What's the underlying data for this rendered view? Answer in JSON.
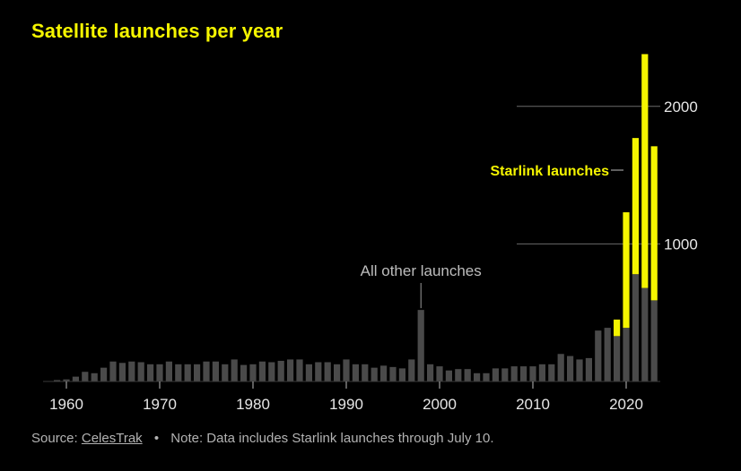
{
  "title": "Satellite launches per year",
  "source": {
    "prefix": "Source:",
    "link_text": "CelesTrak",
    "separator": "•",
    "note": "Note: Data includes Starlink launches through July 10."
  },
  "colors": {
    "background": "#000000",
    "title": "#f5f500",
    "starlink": "#f5f500",
    "other": "#4a4a4a",
    "axis_text": "#e6e6e6",
    "annotation": "#bdbdbd"
  },
  "chart_data": {
    "type": "bar",
    "stacked": true,
    "xlim": [
      1957,
      2023
    ],
    "ylim": [
      0,
      2400
    ],
    "x_ticks": [
      1960,
      1970,
      1980,
      1990,
      2000,
      2010,
      2020
    ],
    "y_ticks": [
      1000,
      2000
    ],
    "x_tick_labels": [
      "1960",
      "1970",
      "1980",
      "1990",
      "2000",
      "2010",
      "2020"
    ],
    "y_tick_labels": [
      "1000",
      "2000"
    ],
    "grid": false,
    "legend": "none",
    "annotations": [
      "All other launches",
      "Starlink launches"
    ],
    "x": [
      1959,
      1960,
      1961,
      1962,
      1963,
      1964,
      1965,
      1966,
      1967,
      1968,
      1969,
      1970,
      1971,
      1972,
      1973,
      1974,
      1975,
      1976,
      1977,
      1978,
      1979,
      1980,
      1981,
      1982,
      1983,
      1984,
      1985,
      1986,
      1987,
      1988,
      1989,
      1990,
      1991,
      1992,
      1993,
      1994,
      1995,
      1996,
      1997,
      1998,
      1999,
      2000,
      2001,
      2002,
      2003,
      2004,
      2005,
      2006,
      2007,
      2008,
      2009,
      2010,
      2011,
      2012,
      2013,
      2014,
      2015,
      2016,
      2017,
      2018,
      2019,
      2020,
      2021,
      2022,
      2023
    ],
    "series": [
      {
        "name": "All other launches",
        "values": [
          10,
          15,
          35,
          70,
          60,
          100,
          145,
          135,
          145,
          140,
          125,
          125,
          145,
          125,
          125,
          125,
          145,
          145,
          125,
          160,
          120,
          125,
          145,
          140,
          150,
          160,
          160,
          125,
          140,
          140,
          125,
          160,
          125,
          125,
          100,
          115,
          105,
          95,
          160,
          520,
          125,
          110,
          80,
          90,
          90,
          60,
          60,
          95,
          95,
          110,
          110,
          110,
          125,
          125,
          200,
          185,
          160,
          170,
          370,
          390,
          330,
          390,
          780,
          680,
          590
        ]
      },
      {
        "name": "Starlink launches",
        "values": [
          0,
          0,
          0,
          0,
          0,
          0,
          0,
          0,
          0,
          0,
          0,
          0,
          0,
          0,
          0,
          0,
          0,
          0,
          0,
          0,
          0,
          0,
          0,
          0,
          0,
          0,
          0,
          0,
          0,
          0,
          0,
          0,
          0,
          0,
          0,
          0,
          0,
          0,
          0,
          0,
          0,
          0,
          0,
          0,
          0,
          0,
          0,
          0,
          0,
          0,
          0,
          0,
          0,
          0,
          0,
          0,
          0,
          0,
          0,
          0,
          120,
          840,
          990,
          1700,
          1120
        ]
      }
    ]
  }
}
